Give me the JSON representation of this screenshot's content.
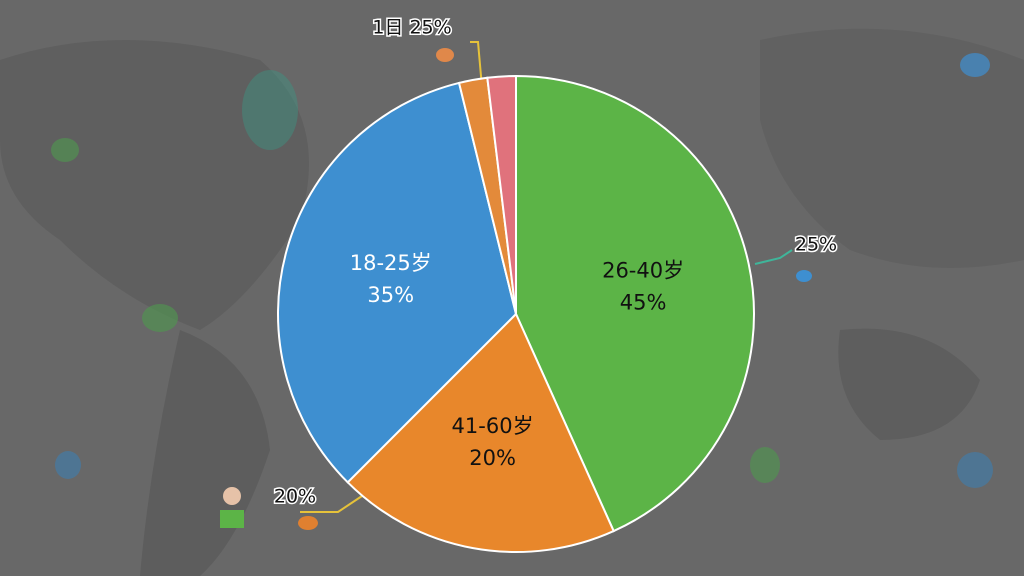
{
  "chart_data": {
    "type": "pie",
    "categories": [
      "26-40岁",
      "41-60岁",
      "18-25岁",
      null,
      null
    ],
    "values": [
      45,
      20,
      35,
      2,
      2
    ],
    "value_labels": [
      "45%",
      "20%",
      "35%",
      null,
      null
    ],
    "colors": [
      "#5cb447",
      "#e8872b",
      "#3e8fd0",
      "#e38a3a",
      "#e0727c"
    ],
    "annotations": [
      "1日 25%",
      "25%",
      "20%"
    ]
  }
}
